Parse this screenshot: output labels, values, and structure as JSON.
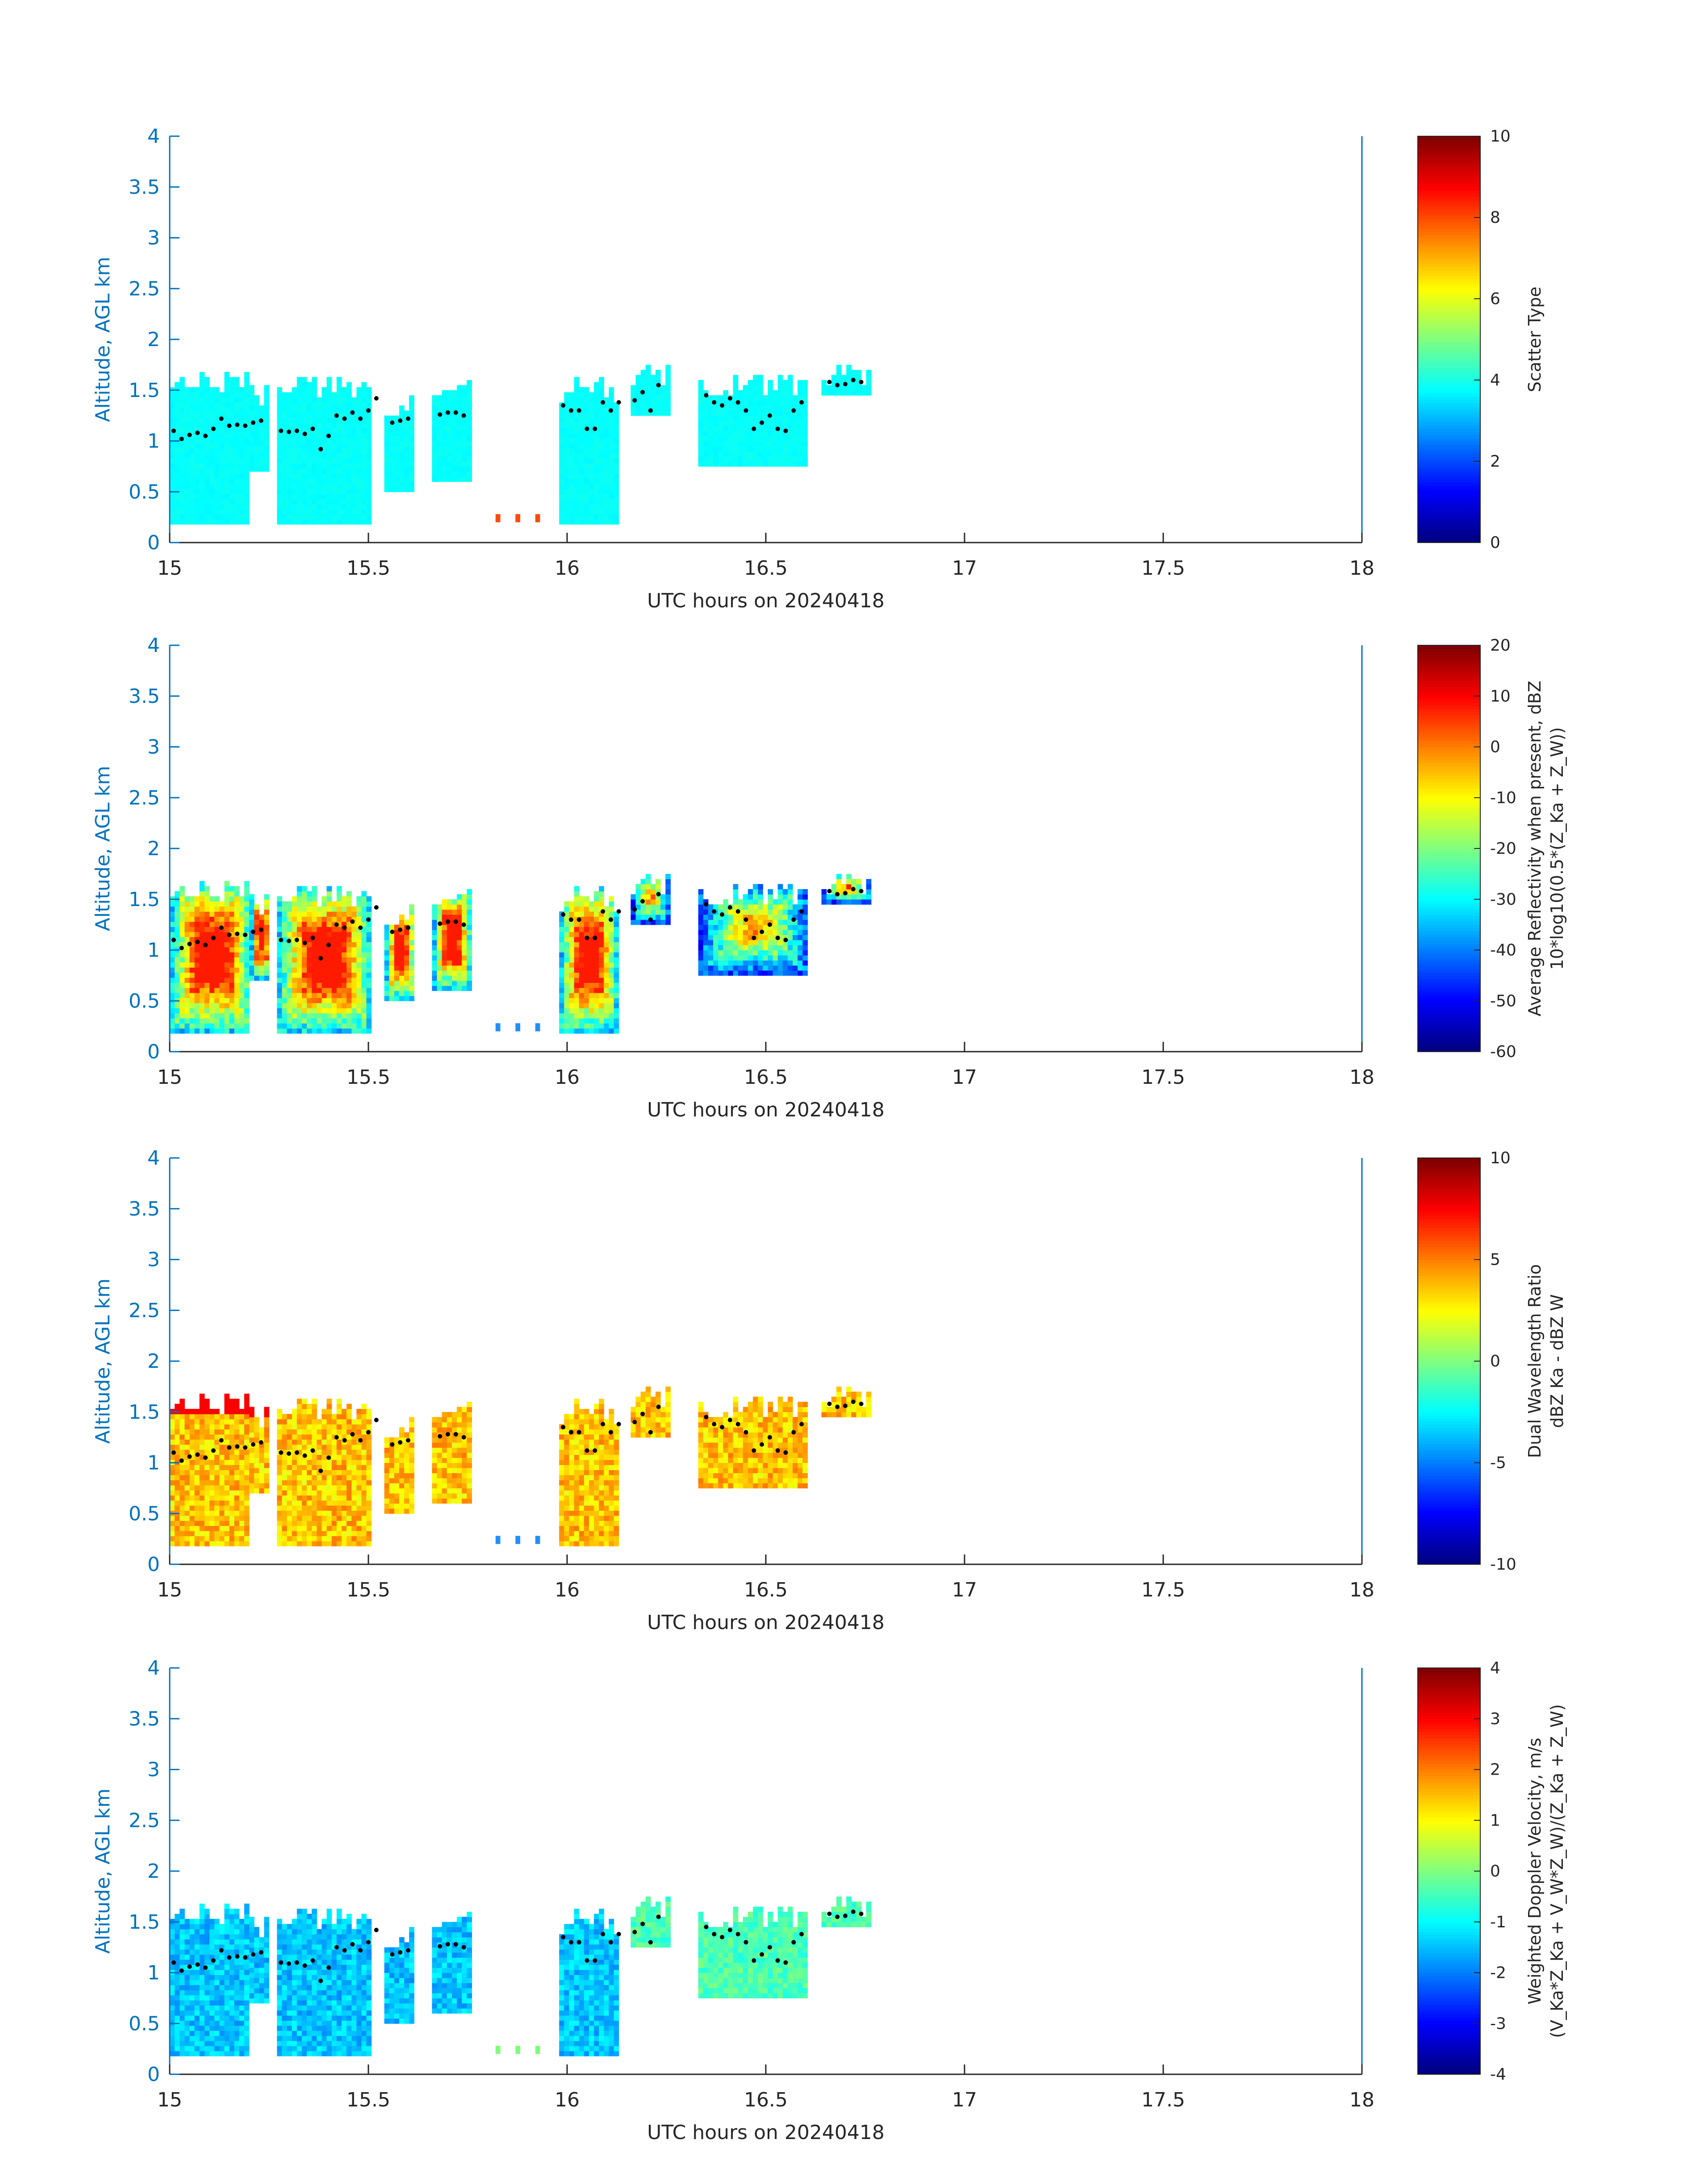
{
  "chart_data": [
    {
      "type": "heatmap",
      "title": "",
      "xlabel": "UTC hours on 20240418",
      "ylabel": "Altitude, AGL km",
      "xlim": [
        15,
        18
      ],
      "ylim": [
        0,
        4
      ],
      "xticks": [
        "15",
        "15.5",
        "16",
        "16.5",
        "17",
        "17.5",
        "18"
      ],
      "yticks": [
        "0",
        "0.5",
        "1",
        "1.5",
        "2",
        "2.5",
        "3",
        "3.5",
        "4"
      ],
      "colorbar": {
        "label_line1": "Scatter Type",
        "label_line2": "",
        "range": [
          0,
          10
        ],
        "ticks": [
          "0",
          "2",
          "4",
          "6",
          "8",
          "10"
        ]
      },
      "field": "scatter",
      "cloud_base_markers": "black dots"
    },
    {
      "type": "heatmap",
      "title": "",
      "xlabel": "UTC hours on 20240418",
      "ylabel": "Altitude, AGL km",
      "xlim": [
        15,
        18
      ],
      "ylim": [
        0,
        4
      ],
      "xticks": [
        "15",
        "15.5",
        "16",
        "16.5",
        "17",
        "17.5",
        "18"
      ],
      "yticks": [
        "0",
        "0.5",
        "1",
        "1.5",
        "2",
        "2.5",
        "3",
        "3.5",
        "4"
      ],
      "colorbar": {
        "label_line1": "Average Reflectivity when present, dBZ",
        "label_line2": "10*log10(0.5*(Z_Ka + Z_W))",
        "range": [
          -60,
          20
        ],
        "ticks": [
          "-60",
          "-50",
          "-40",
          "-30",
          "-20",
          "-10",
          "0",
          "10",
          "20"
        ]
      },
      "field": "reflectivity",
      "cloud_base_markers": "black dots"
    },
    {
      "type": "heatmap",
      "title": "",
      "xlabel": "UTC hours on 20240418",
      "ylabel": "Altitude, AGL km",
      "xlim": [
        15,
        18
      ],
      "ylim": [
        0,
        4
      ],
      "xticks": [
        "15",
        "15.5",
        "16",
        "16.5",
        "17",
        "17.5",
        "18"
      ],
      "yticks": [
        "0",
        "0.5",
        "1",
        "1.5",
        "2",
        "2.5",
        "3",
        "3.5",
        "4"
      ],
      "colorbar": {
        "label_line1": "Dual Wavelength Ratio",
        "label_line2": "dBZ Ka - dBZ W",
        "range": [
          -10,
          10
        ],
        "ticks": [
          "-10",
          "-5",
          "0",
          "5",
          "10"
        ]
      },
      "field": "dwr",
      "cloud_base_markers": "black dots"
    },
    {
      "type": "heatmap",
      "title": "",
      "xlabel": "UTC hours on 20240418",
      "ylabel": "Altitude, AGL km",
      "xlim": [
        15,
        18
      ],
      "ylim": [
        0,
        4
      ],
      "xticks": [
        "15",
        "15.5",
        "16",
        "16.5",
        "17",
        "17.5",
        "18"
      ],
      "yticks": [
        "0",
        "0.5",
        "1",
        "1.5",
        "2",
        "2.5",
        "3",
        "3.5",
        "4"
      ],
      "colorbar": {
        "label_line1": "Weighted Doppler Velocity, m/s",
        "label_line2": "(V_Ka*Z_Ka + V_W*Z_W)/(Z_Ka + Z_W)",
        "range": [
          -4,
          4
        ],
        "ticks": [
          "-4",
          "-3",
          "-2",
          "-1",
          "0",
          "1",
          "2",
          "3",
          "4"
        ]
      },
      "field": "velocity",
      "cloud_base_markers": "black dots"
    }
  ],
  "echo_columns": [
    {
      "t0": 15.0,
      "t1": 15.2,
      "bot": 0.18,
      "top": 1.68
    },
    {
      "t0": 15.2,
      "t1": 15.25,
      "bot": 0.7,
      "top": 1.55
    },
    {
      "t0": 15.27,
      "t1": 15.5,
      "bot": 0.18,
      "top": 1.62
    },
    {
      "t0": 15.54,
      "t1": 15.61,
      "bot": 0.5,
      "top": 1.45
    },
    {
      "t0": 15.66,
      "t1": 15.75,
      "bot": 0.6,
      "top": 1.58
    },
    {
      "t0": 15.98,
      "t1": 16.12,
      "bot": 0.18,
      "top": 1.62
    },
    {
      "t0": 16.16,
      "t1": 16.25,
      "bot": 1.25,
      "top": 1.75
    },
    {
      "t0": 16.33,
      "t1": 16.6,
      "bot": 0.75,
      "top": 1.65
    },
    {
      "t0": 16.64,
      "t1": 16.76,
      "bot": 1.45,
      "top": 1.75
    }
  ],
  "cloud_base_points": [
    [
      15.01,
      1.1
    ],
    [
      15.03,
      1.02
    ],
    [
      15.05,
      1.06
    ],
    [
      15.07,
      1.08
    ],
    [
      15.09,
      1.05
    ],
    [
      15.11,
      1.12
    ],
    [
      15.13,
      1.22
    ],
    [
      15.15,
      1.15
    ],
    [
      15.17,
      1.16
    ],
    [
      15.19,
      1.15
    ],
    [
      15.21,
      1.18
    ],
    [
      15.23,
      1.2
    ],
    [
      15.28,
      1.1
    ],
    [
      15.3,
      1.09
    ],
    [
      15.32,
      1.1
    ],
    [
      15.34,
      1.07
    ],
    [
      15.36,
      1.12
    ],
    [
      15.38,
      0.92
    ],
    [
      15.4,
      1.05
    ],
    [
      15.42,
      1.25
    ],
    [
      15.44,
      1.22
    ],
    [
      15.46,
      1.28
    ],
    [
      15.48,
      1.22
    ],
    [
      15.5,
      1.3
    ],
    [
      15.52,
      1.42
    ],
    [
      15.56,
      1.18
    ],
    [
      15.58,
      1.2
    ],
    [
      15.6,
      1.22
    ],
    [
      15.68,
      1.26
    ],
    [
      15.7,
      1.28
    ],
    [
      15.72,
      1.28
    ],
    [
      15.74,
      1.25
    ],
    [
      15.99,
      1.35
    ],
    [
      16.01,
      1.3
    ],
    [
      16.03,
      1.3
    ],
    [
      16.05,
      1.12
    ],
    [
      16.07,
      1.12
    ],
    [
      16.09,
      1.38
    ],
    [
      16.11,
      1.3
    ],
    [
      16.13,
      1.38
    ],
    [
      16.17,
      1.4
    ],
    [
      16.19,
      1.48
    ],
    [
      16.21,
      1.3
    ],
    [
      16.23,
      1.55
    ],
    [
      16.35,
      1.45
    ],
    [
      16.37,
      1.38
    ],
    [
      16.39,
      1.35
    ],
    [
      16.41,
      1.42
    ],
    [
      16.43,
      1.38
    ],
    [
      16.45,
      1.3
    ],
    [
      16.47,
      1.12
    ],
    [
      16.49,
      1.18
    ],
    [
      16.51,
      1.25
    ],
    [
      16.53,
      1.12
    ],
    [
      16.55,
      1.1
    ],
    [
      16.57,
      1.3
    ],
    [
      16.59,
      1.38
    ],
    [
      16.66,
      1.58
    ],
    [
      16.68,
      1.55
    ],
    [
      16.7,
      1.56
    ],
    [
      16.72,
      1.6
    ],
    [
      16.74,
      1.58
    ]
  ],
  "low_isolated_echoes": [
    [
      15.82,
      0.2
    ],
    [
      15.87,
      0.2
    ],
    [
      15.92,
      0.2
    ]
  ]
}
